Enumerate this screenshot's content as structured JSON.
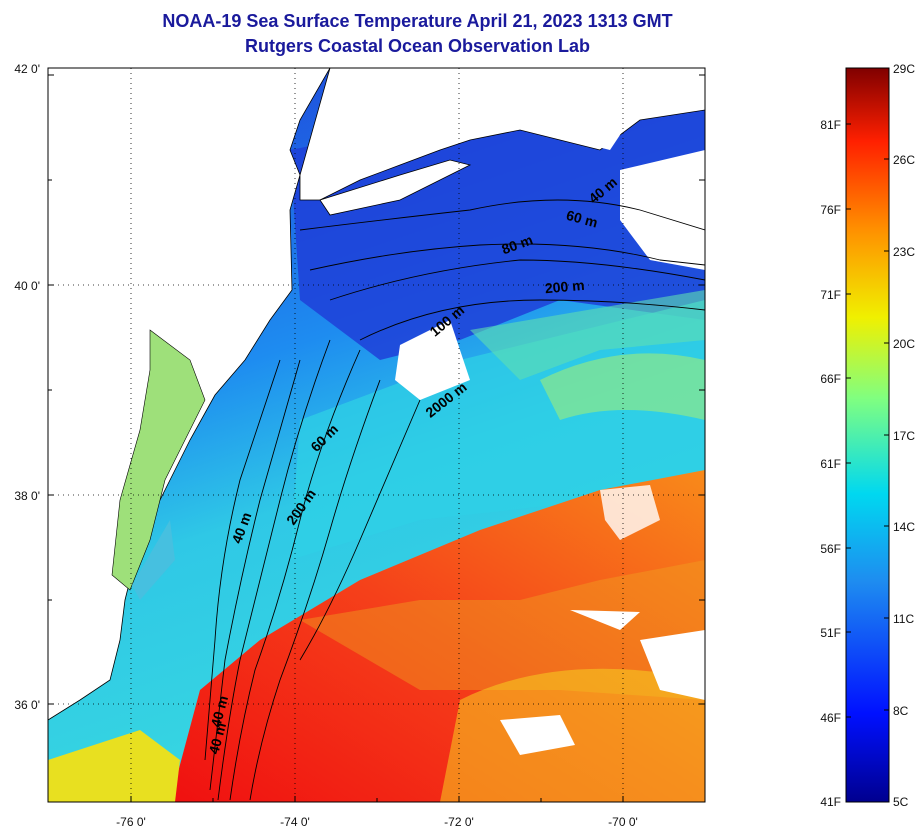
{
  "header": {
    "title": "NOAA-19 Sea Surface Temperature April 21, 2023 1313 GMT",
    "subtitle": "Rutgers Coastal Ocean Observation Lab"
  },
  "map": {
    "lat_labels": [
      "42 0'",
      "40 0'",
      "38 0'",
      "36 0'"
    ],
    "lon_labels": [
      "-76 0'",
      "-74 0'",
      "-72 0'",
      "-70 0'"
    ],
    "isobath_labels": [
      {
        "text": "40 m"
      },
      {
        "text": "60 m"
      },
      {
        "text": "80 m"
      },
      {
        "text": "200 m"
      },
      {
        "text": "100 m"
      },
      {
        "text": "2000 m"
      },
      {
        "text": "60 m"
      },
      {
        "text": "200 m"
      },
      {
        "text": "40 m"
      },
      {
        "text": "40 m"
      },
      {
        "text": "40 m"
      }
    ]
  },
  "colorbar": {
    "celsius_labels": [
      "29C",
      "26C",
      "23C",
      "20C",
      "17C",
      "14C",
      "11C",
      "8C",
      "5C"
    ],
    "fahrenheit_labels": [
      "81F",
      "76F",
      "71F",
      "66F",
      "61F",
      "56F",
      "51F",
      "46F",
      "41F"
    ]
  },
  "colors": {
    "title": "#1a1a9c",
    "cold_water": "#1f3fd8",
    "shelf_water": "#1e8cf0",
    "slope_water": "#2fd0e6",
    "warm_gulf_stream": "#f23a12",
    "land": "#ffffff"
  }
}
